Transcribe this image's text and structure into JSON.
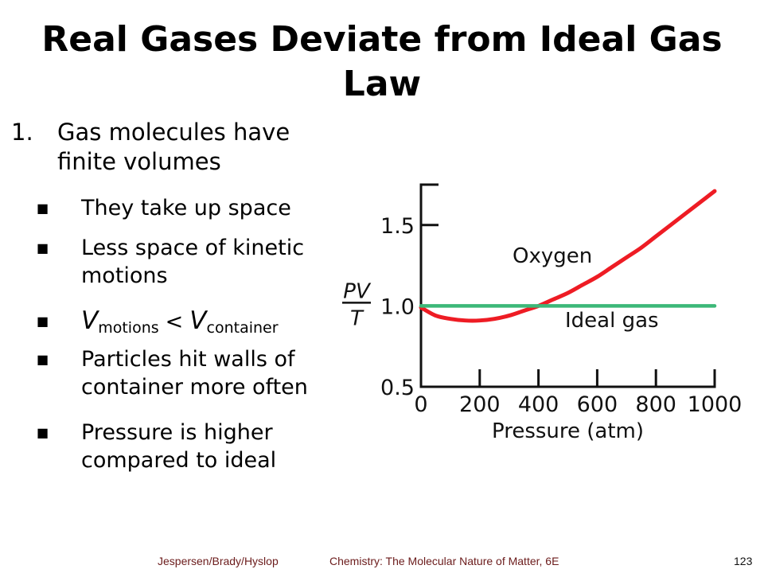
{
  "title": "Real Gases Deviate from Ideal Gas Law",
  "list": {
    "number": "1.",
    "heading": "Gas molecules have finite volumes",
    "bullets": [
      "They take up space",
      "Less space of kinetic motions",
      "Particles hit walls of container more often",
      "Pressure is higher compared to ideal"
    ],
    "inequality": {
      "left_symbol": "V",
      "left_sub": "motions",
      "operator": "<",
      "right_symbol": "V",
      "right_sub": "container"
    },
    "bullet_glyph": "■"
  },
  "chart_data": {
    "type": "line",
    "xlabel": "Pressure (atm)",
    "ylabel_num": "PV",
    "ylabel_den": "T",
    "xlim": [
      0,
      1000
    ],
    "ylim": [
      0.5,
      1.75
    ],
    "x_ticks": [
      0,
      200,
      400,
      600,
      800,
      1000
    ],
    "x_tick_labels": [
      "0",
      "200",
      "400",
      "600",
      "800",
      "1000"
    ],
    "y_ticks": [
      0.5,
      1.0,
      1.5
    ],
    "y_tick_labels": [
      "0.5",
      "1.0",
      "1.5"
    ],
    "series": [
      {
        "name": "Oxygen",
        "color": "#ee1c24",
        "x": [
          0,
          50,
          100,
          150,
          200,
          250,
          300,
          350,
          400,
          450,
          500,
          550,
          600,
          650,
          700,
          750,
          800,
          850,
          900,
          950,
          1000
        ],
        "y": [
          0.99,
          0.94,
          0.92,
          0.91,
          0.91,
          0.92,
          0.94,
          0.97,
          1.0,
          1.04,
          1.08,
          1.13,
          1.18,
          1.24,
          1.3,
          1.36,
          1.43,
          1.5,
          1.57,
          1.64,
          1.71
        ]
      },
      {
        "name": "Ideal gas",
        "color": "#3cb878",
        "x": [
          0,
          1000
        ],
        "y": [
          1.0,
          1.0
        ]
      }
    ]
  },
  "footer": {
    "authors": "Jespersen/Brady/Hyslop",
    "book": "Chemistry: The Molecular Nature of Matter, 6E",
    "page": "123"
  }
}
